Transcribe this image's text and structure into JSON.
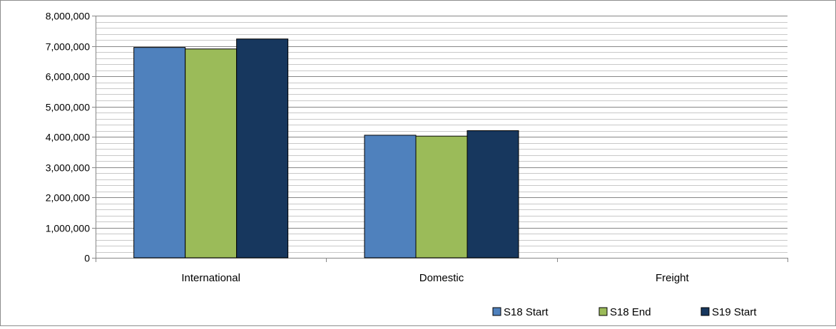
{
  "chart_data": {
    "type": "bar",
    "categories": [
      "International",
      "Domestic",
      "Freight"
    ],
    "series": [
      {
        "name": "S18 Start",
        "values": [
          6950000,
          4050000,
          0
        ],
        "color": "#4f81bd"
      },
      {
        "name": "S18 End",
        "values": [
          6900000,
          4020000,
          0
        ],
        "color": "#9bbb59"
      },
      {
        "name": "S19 Start",
        "values": [
          7230000,
          4200000,
          0
        ],
        "color": "#17375e"
      }
    ],
    "ylim": [
      0,
      8000000
    ],
    "yticks": [
      0,
      1000000,
      2000000,
      3000000,
      4000000,
      5000000,
      6000000,
      7000000,
      8000000
    ],
    "ytick_labels": [
      "0",
      "1,000,000",
      "2,000,000",
      "3,000,000",
      "4,000,000",
      "5,000,000",
      "6,000,000",
      "7,000,000",
      "8,000,000"
    ],
    "minor_gridlines_per_major": 5,
    "grid": true,
    "legend_position": "bottom-right",
    "title": "",
    "xlabel": "",
    "ylabel": ""
  }
}
